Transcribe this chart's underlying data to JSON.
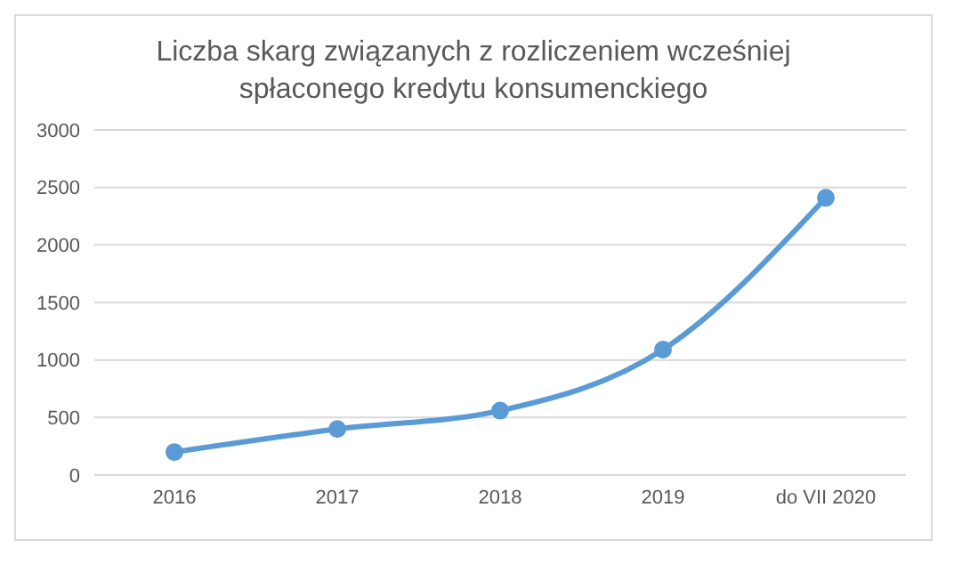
{
  "chart_data": {
    "type": "line",
    "title": "Liczba skarg związanych z rozliczeniem wcześniej spłaconego kredytu konsumenckiego",
    "categories": [
      "2016",
      "2017",
      "2018",
      "2019",
      "do VII 2020"
    ],
    "series": [
      {
        "color": "#5b9bd5",
        "values": [
          200,
          400,
          560,
          1090,
          2410
        ]
      }
    ],
    "ylim": [
      0,
      3000
    ],
    "yticks": [
      0,
      500,
      1000,
      1500,
      2000,
      2500,
      3000
    ],
    "grid": "y",
    "legend": false,
    "marker": "circle",
    "line_style": "solid"
  }
}
